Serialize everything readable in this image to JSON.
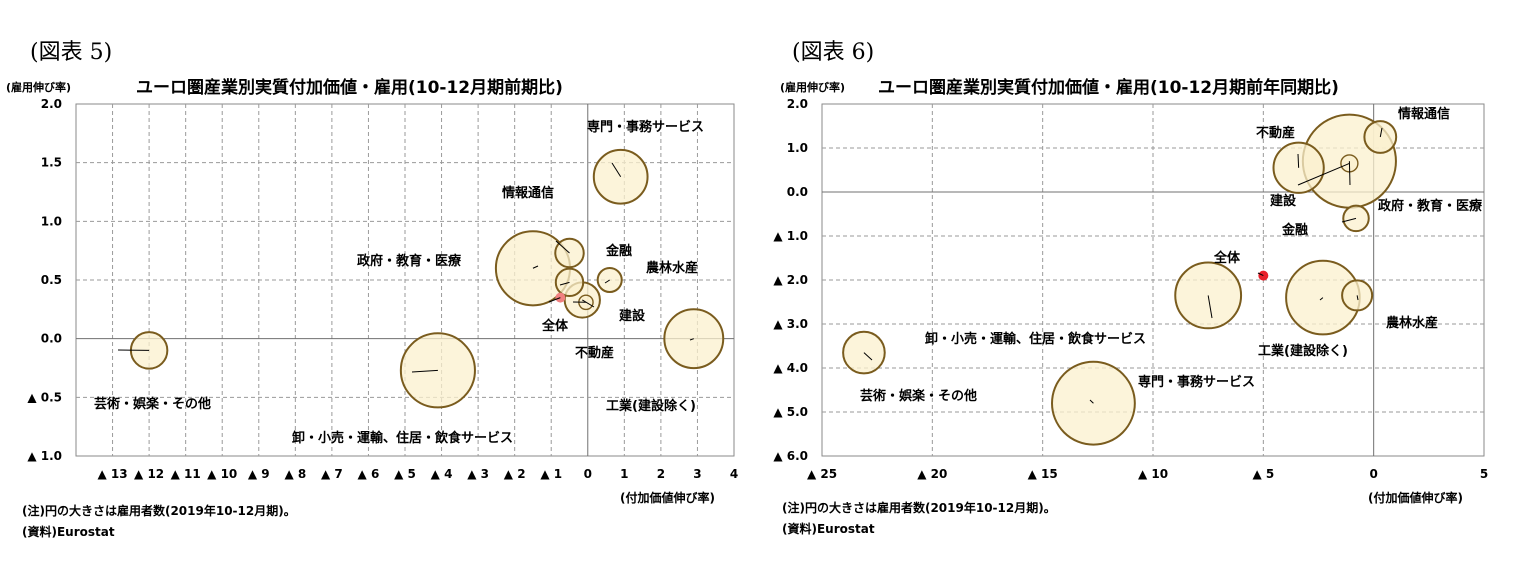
{
  "charts": [
    {
      "figure_label": "(図表 5)",
      "title": "ユーロ圏産業別実質付加価値・雇用(10-12月期前期比)",
      "ylabel": "(雇用伸び率)",
      "xlabel": "(付加価値伸び率)",
      "note": "(注)円の大きさは雇用者数(2019年10-12月期)。",
      "source": "(資料)Eurostat"
    },
    {
      "figure_label": "(図表 6)",
      "title": "ユーロ圏産業別実質付加価値・雇用(10-12月期前年同期比)",
      "ylabel": "(雇用伸び率)",
      "xlabel": "(付加価値伸び率)",
      "note": "(注)円の大きさは雇用者数(2019年10-12月期)。",
      "source": "(資料)Eurostat"
    }
  ],
  "chart_data": [
    {
      "type": "scatter",
      "title": "ユーロ圏産業別実質付加価値・雇用(10-12月期前期比)",
      "xlabel": "(付加価値伸び率)",
      "ylabel": "(雇用伸び率)",
      "xlim": [
        -14,
        4
      ],
      "ylim": [
        -1.0,
        2.0
      ],
      "x_ticks": [
        -13,
        -12,
        -11,
        -10,
        -9,
        -8,
        -7,
        -6,
        -5,
        -4,
        -3,
        -2,
        -1,
        0,
        1,
        2,
        3,
        4
      ],
      "x_tick_labels": [
        "▲ 13",
        "▲ 12",
        "▲ 11",
        "▲ 10",
        "▲ 9",
        "▲ 8",
        "▲ 7",
        "▲ 6",
        "▲ 5",
        "▲ 4",
        "▲ 3",
        "▲ 2",
        "▲ 1",
        "0",
        "1",
        "2",
        "3",
        "4"
      ],
      "y_ticks": [
        2.0,
        1.5,
        1.0,
        0.5,
        0.0,
        -0.5,
        -1.0
      ],
      "y_tick_labels": [
        "2.0",
        "1.5",
        "1.0",
        "0.5",
        "0.0",
        "▲ 0.5",
        "▲ 1.0"
      ],
      "grid": true,
      "bubble_fill": "#fbf0cd",
      "bubble_stroke": "#7a5c1e",
      "highlight_color": "#f08080",
      "points": [
        {
          "name": "専門・事務サービス",
          "x": 0.9,
          "y": 1.38,
          "size": 10.0
        },
        {
          "name": "情報通信",
          "x": -0.5,
          "y": 0.73,
          "size": 2.8
        },
        {
          "name": "政府・教育・医療",
          "x": -1.5,
          "y": 0.6,
          "size": 19.0
        },
        {
          "name": "金融",
          "x": -0.5,
          "y": 0.48,
          "size": 2.6
        },
        {
          "name": "農林水産",
          "x": 0.6,
          "y": 0.5,
          "size": 2.0
        },
        {
          "name": "全体",
          "x": -0.75,
          "y": 0.35,
          "size": 0.3,
          "highlight": true
        },
        {
          "name": "建設",
          "x": -0.15,
          "y": 0.33,
          "size": 4.3
        },
        {
          "name": "不動産",
          "x": -0.05,
          "y": 0.31,
          "size": 0.7
        },
        {
          "name": "工業(建設除く)",
          "x": 2.9,
          "y": 0.0,
          "size": 12.0
        },
        {
          "name": "芸術・娯楽・その他",
          "x": -12.0,
          "y": -0.1,
          "size": 4.6
        },
        {
          "name": "卸・小売・運輸、住居・飲食サービス",
          "x": -4.1,
          "y": -0.27,
          "size": 19.0
        }
      ]
    },
    {
      "type": "scatter",
      "title": "ユーロ圏産業別実質付加価値・雇用(10-12月期前年同期比)",
      "xlabel": "(付加価値伸び率)",
      "ylabel": "(雇用伸び率)",
      "xlim": [
        -25,
        5
      ],
      "ylim": [
        -6.0,
        2.0
      ],
      "x_ticks": [
        -25,
        -20,
        -15,
        -10,
        -5,
        0,
        5
      ],
      "x_tick_labels": [
        "▲ 25",
        "▲ 20",
        "▲ 15",
        "▲ 10",
        "▲ 5",
        "0",
        "5"
      ],
      "y_ticks": [
        2.0,
        1.0,
        0.0,
        -1.0,
        -2.0,
        -3.0,
        -4.0,
        -5.0,
        -6.0
      ],
      "y_tick_labels": [
        "2.0",
        "1.0",
        "0.0",
        "▲ 1.0",
        "▲ 2.0",
        "▲ 3.0",
        "▲ 4.0",
        "▲ 5.0",
        "▲ 6.0"
      ],
      "grid": true,
      "bubble_fill": "#fbf0cd",
      "bubble_stroke": "#7a5c1e",
      "highlight_color": "#e8202a",
      "points": [
        {
          "name": "情報通信",
          "x": 0.3,
          "y": 1.25,
          "size": 2.8
        },
        {
          "name": "不動産",
          "x": -3.4,
          "y": 0.55,
          "size": 7.0
        },
        {
          "name": "政府・教育・医療",
          "x": -1.1,
          "y": 0.7,
          "size": 24.0
        },
        {
          "name": "建設",
          "x": -1.1,
          "y": 0.65,
          "size": 0.8
        },
        {
          "name": "金融",
          "x": -0.8,
          "y": -0.6,
          "size": 1.8
        },
        {
          "name": "全体",
          "x": -5.0,
          "y": -1.9,
          "size": 0.3,
          "highlight": true
        },
        {
          "name": "専門・事務サービス",
          "x": -7.5,
          "y": -2.35,
          "size": 12.0
        },
        {
          "name": "工業(建設除く)",
          "x": -2.3,
          "y": -2.4,
          "size": 15.0
        },
        {
          "name": "農林水産",
          "x": -0.75,
          "y": -2.35,
          "size": 2.5
        },
        {
          "name": "芸術・娯楽・その他",
          "x": -23.1,
          "y": -3.65,
          "size": 4.8
        },
        {
          "name": "卸・小売・運輸、住居・飲食サービス",
          "x": -12.7,
          "y": -4.8,
          "size": 19.0
        }
      ]
    }
  ]
}
